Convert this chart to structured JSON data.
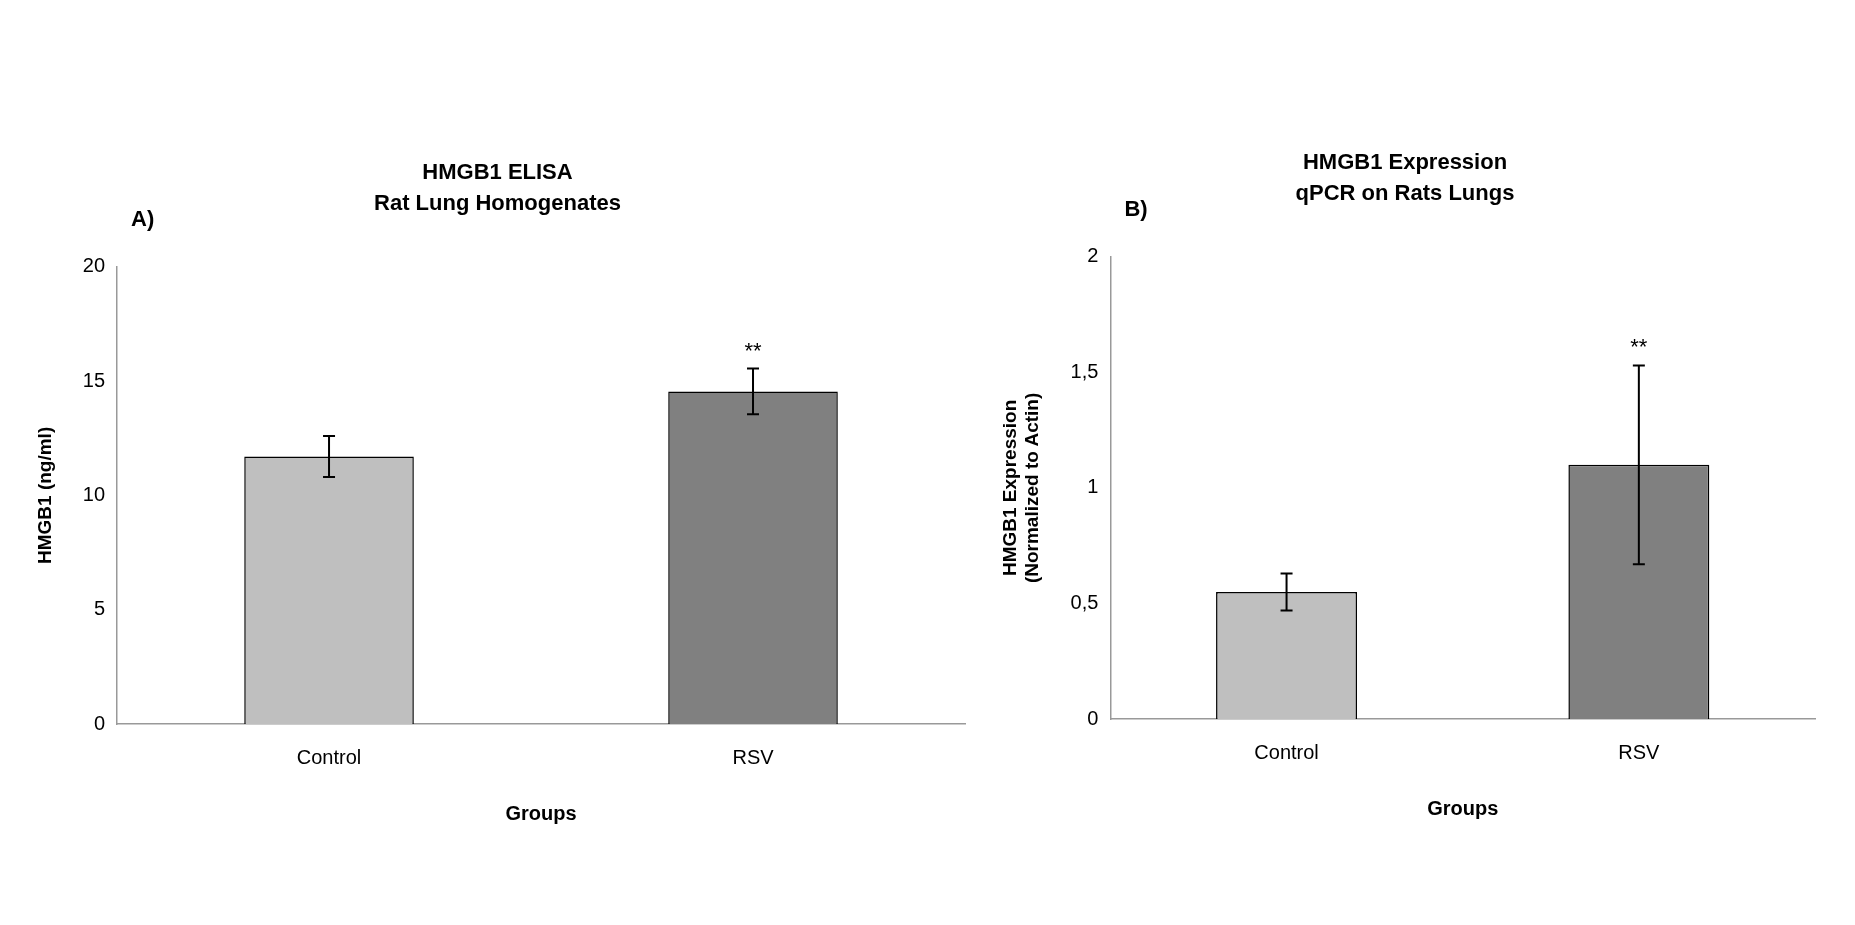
{
  "chart_data": [
    {
      "type": "bar",
      "title": "HMGB1 ELISA",
      "subtitle": "Rat Lung Homogenates",
      "xlabel": "Groups",
      "ylabel": "HMGB1 (ng/ml)",
      "categories": [
        "Control",
        "RSV"
      ],
      "values": [
        11.7,
        14.55
      ],
      "errors": [
        0.9,
        1
      ],
      "colors": [
        "#bfbfbf",
        "#808080"
      ],
      "ylim": [
        0,
        20
      ],
      "yticks": [
        0,
        5,
        10,
        15,
        20
      ],
      "grid": false,
      "legend": false,
      "annotations": [
        "A)",
        {
          "text": "**",
          "x": "RSV",
          "y": 15.55
        }
      ]
    },
    {
      "type": "bar",
      "title": "HMGB1 Expression",
      "subtitle": "qPCR on Rats Lungs",
      "xlabel": "Groups",
      "ylabel": "HMGB1 Expression\n(Normalized to Actin)",
      "categories": [
        "Control",
        "RSV"
      ],
      "values": [
        0.55,
        1.1
      ],
      "errors": [
        0.08,
        0.43
      ],
      "colors": [
        "#bfbfbf",
        "#808080"
      ],
      "ylim": [
        0,
        2
      ],
      "yticks": [
        0,
        {
          "value": 0.5,
          "label": "0,5"
        },
        1,
        {
          "value": 1.5,
          "label": "1,5"
        },
        2
      ],
      "grid": false,
      "legend": false,
      "annotations": [
        "B)",
        {
          "text": "**",
          "x": "RSV",
          "y": 1.53
        }
      ]
    }
  ]
}
